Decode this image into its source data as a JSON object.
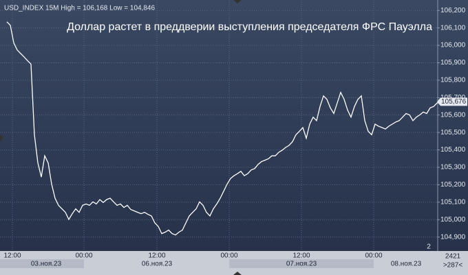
{
  "chart_data": {
    "type": "line",
    "header": "USD_INDEX 15M High = 106,168 Low = 104,846",
    "title": "Доллар растет в преддверии выступления председателя ФРС Пауэлла",
    "color": "#ffffff",
    "values": [
      106.135,
      106.115,
      106.014,
      105.973,
      105.953,
      105.933,
      105.912,
      105.892,
      105.487,
      105.325,
      105.244,
      105.366,
      105.325,
      105.204,
      105.123,
      105.082,
      105.062,
      105.042,
      105.001,
      105.034,
      105.062,
      105.042,
      105.082,
      105.09,
      105.082,
      105.102,
      105.09,
      105.115,
      105.098,
      105.115,
      105.123,
      105.102,
      105.082,
      105.09,
      105.07,
      105.082,
      105.058,
      105.05,
      105.042,
      105.034,
      105.042,
      105.03,
      105.021,
      104.981,
      104.961,
      104.92,
      104.928,
      104.94,
      104.92,
      104.912,
      104.928,
      104.94,
      104.981,
      105.021,
      105.042,
      105.062,
      105.102,
      105.082,
      105.042,
      105.021,
      105.062,
      105.09,
      105.123,
      105.163,
      105.204,
      105.236,
      105.252,
      105.264,
      105.277,
      105.252,
      105.264,
      105.285,
      105.293,
      105.317,
      105.333,
      105.341,
      105.349,
      105.366,
      105.366,
      105.386,
      105.398,
      105.414,
      105.426,
      105.447,
      105.487,
      105.507,
      105.528,
      105.467,
      105.548,
      105.588,
      105.568,
      105.649,
      105.71,
      105.69,
      105.641,
      105.609,
      105.669,
      105.73,
      105.69,
      105.629,
      105.588,
      105.649,
      105.69,
      105.71,
      105.568,
      105.507,
      105.487,
      105.548,
      105.536,
      105.528,
      105.52,
      105.536,
      105.548,
      105.56,
      105.568,
      105.588,
      105.609,
      105.601,
      105.568,
      105.588,
      105.601,
      105.617,
      105.609,
      105.641,
      105.649,
      105.669,
      105.676
    ],
    "xlim": [
      -2,
      125
    ],
    "ylim": [
      104.82,
      106.26
    ],
    "yticks": [
      {
        "value": 104.9,
        "label": "104,900"
      },
      {
        "value": 105.0,
        "label": "105,000"
      },
      {
        "value": 105.1,
        "label": "105,100"
      },
      {
        "value": 105.2,
        "label": "105,200"
      },
      {
        "value": 105.3,
        "label": "105,300"
      },
      {
        "value": 105.4,
        "label": "105,400"
      },
      {
        "value": 105.5,
        "label": "105,500"
      },
      {
        "value": 105.6,
        "label": "105,600"
      },
      {
        "value": 105.7,
        "label": "105,700"
      },
      {
        "value": 105.8,
        "label": "105,800"
      },
      {
        "value": 105.9,
        "label": "105,900"
      },
      {
        "value": 106.0,
        "label": "106,000"
      },
      {
        "value": 106.1,
        "label": "106,100"
      },
      {
        "value": 106.2,
        "label": "106,200"
      }
    ],
    "xticks": [
      {
        "value": 1.6,
        "label": "12:00"
      },
      {
        "value": 22.4,
        "label": "00:00"
      },
      {
        "value": 43.6,
        "label": "12:00"
      },
      {
        "value": 64.6,
        "label": "00:00"
      },
      {
        "value": 85.6,
        "label": "12:00"
      },
      {
        "value": 106.6,
        "label": "00:00"
      }
    ],
    "date_ticks": [
      {
        "value": 11.4,
        "label": "03.ноя.23"
      },
      {
        "value": 43.6,
        "label": "06.ноя.23"
      },
      {
        "value": 85.6,
        "label": "07.ноя.23"
      },
      {
        "value": 116,
        "label": "08.ноя.23"
      }
    ],
    "last_price": {
      "value": 105.676,
      "label": "105,676"
    },
    "grid": true,
    "corner_texts": [
      "2",
      "2421",
      ">287<"
    ]
  }
}
